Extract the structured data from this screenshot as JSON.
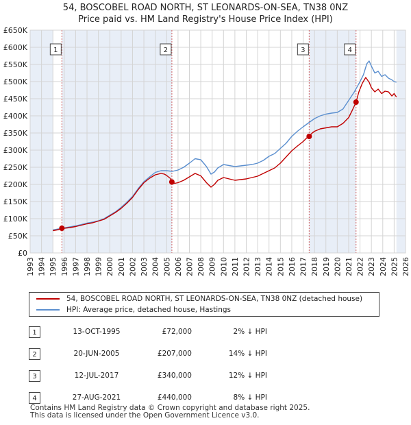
{
  "title_line1": "54, BOSCOBEL ROAD NORTH, ST LEONARDS-ON-SEA, TN38 0NZ",
  "title_line2": "Price paid vs. HM Land Registry's House Price Index (HPI)",
  "chart_data": {
    "type": "line",
    "x_ticks": [
      "1993",
      "1994",
      "1995",
      "1996",
      "1997",
      "1998",
      "1999",
      "2000",
      "2001",
      "2002",
      "2003",
      "2004",
      "2005",
      "2006",
      "2007",
      "2008",
      "2009",
      "2010",
      "2011",
      "2012",
      "2013",
      "2014",
      "2015",
      "2016",
      "2017",
      "2018",
      "2019",
      "2020",
      "2021",
      "2022",
      "2023",
      "2024",
      "2025",
      "2026"
    ],
    "y_ticks": [
      "£0",
      "£50K",
      "£100K",
      "£150K",
      "£200K",
      "£250K",
      "£300K",
      "£350K",
      "£400K",
      "£450K",
      "£500K",
      "£550K",
      "£600K",
      "£650K"
    ],
    "xlim": [
      1993,
      2026
    ],
    "ylim": [
      0,
      650000
    ],
    "grid": true,
    "colors": {
      "property": "#c00000",
      "hpi": "#5b8fcf",
      "shade": "#e8eef7",
      "marker": "#c00000"
    },
    "series": [
      {
        "name": "54, BOSCOBEL ROAD NORTH, ST LEONARDS-ON-SEA, TN38 0NZ (detached house)",
        "x": [
          1995.0,
          1995.5,
          1995.79,
          1996.0,
          1996.5,
          1997.0,
          1997.5,
          1998.0,
          1998.5,
          1999.0,
          1999.5,
          2000.0,
          2000.5,
          2001.0,
          2001.5,
          2002.0,
          2002.5,
          2003.0,
          2003.5,
          2004.0,
          2004.5,
          2004.8,
          2005.0,
          2005.3,
          2005.46,
          2005.7,
          2006.0,
          2006.5,
          2007.0,
          2007.5,
          2008.0,
          2008.5,
          2008.9,
          2009.2,
          2009.5,
          2010.0,
          2010.5,
          2011.0,
          2011.5,
          2012.0,
          2012.5,
          2013.0,
          2013.5,
          2014.0,
          2014.5,
          2015.0,
          2015.5,
          2016.0,
          2016.5,
          2017.0,
          2017.3,
          2017.53,
          2017.8,
          2018.0,
          2018.5,
          2019.0,
          2019.5,
          2020.0,
          2020.5,
          2021.0,
          2021.3,
          2021.65,
          2021.9,
          2022.2,
          2022.5,
          2022.8,
          2023.0,
          2023.3,
          2023.6,
          2023.9,
          2024.2,
          2024.5,
          2024.8,
          2025.0,
          2025.2
        ],
        "values": [
          65000,
          68000,
          72000,
          72000,
          74000,
          77000,
          81000,
          85000,
          88000,
          93000,
          98000,
          108000,
          118000,
          130000,
          145000,
          162000,
          185000,
          205000,
          218000,
          228000,
          232000,
          230000,
          226000,
          218000,
          207000,
          203000,
          205000,
          212000,
          222000,
          232000,
          225000,
          205000,
          192000,
          200000,
          212000,
          220000,
          216000,
          212000,
          214000,
          216000,
          220000,
          224000,
          232000,
          240000,
          248000,
          262000,
          280000,
          298000,
          312000,
          325000,
          335000,
          340000,
          350000,
          355000,
          362000,
          365000,
          368000,
          368000,
          378000,
          395000,
          415000,
          440000,
          470000,
          495000,
          512000,
          498000,
          482000,
          470000,
          478000,
          465000,
          472000,
          470000,
          458000,
          465000,
          455000
        ]
      },
      {
        "name": "HPI: Average price, detached house, Hastings",
        "x": [
          1995.0,
          1995.5,
          1996.0,
          1996.5,
          1997.0,
          1997.5,
          1998.0,
          1998.5,
          1999.0,
          1999.5,
          2000.0,
          2000.5,
          2001.0,
          2001.5,
          2002.0,
          2002.5,
          2003.0,
          2003.5,
          2004.0,
          2004.5,
          2005.0,
          2005.5,
          2006.0,
          2006.5,
          2007.0,
          2007.5,
          2008.0,
          2008.5,
          2008.9,
          2009.2,
          2009.5,
          2010.0,
          2010.5,
          2011.0,
          2011.5,
          2012.0,
          2012.5,
          2013.0,
          2013.5,
          2014.0,
          2014.5,
          2015.0,
          2015.5,
          2016.0,
          2016.5,
          2017.0,
          2017.5,
          2018.0,
          2018.5,
          2019.0,
          2019.5,
          2020.0,
          2020.5,
          2021.0,
          2021.5,
          2022.0,
          2022.3,
          2022.6,
          2022.8,
          2023.0,
          2023.3,
          2023.6,
          2023.9,
          2024.2,
          2024.5,
          2024.8,
          2025.0,
          2025.2
        ],
        "values": [
          67000,
          70000,
          73000,
          76000,
          79000,
          83000,
          87000,
          90000,
          94000,
          100000,
          110000,
          120000,
          133000,
          148000,
          165000,
          188000,
          208000,
          222000,
          235000,
          240000,
          240000,
          238000,
          242000,
          250000,
          262000,
          275000,
          272000,
          252000,
          230000,
          236000,
          248000,
          258000,
          255000,
          252000,
          254000,
          256000,
          258000,
          262000,
          270000,
          282000,
          290000,
          305000,
          320000,
          340000,
          355000,
          368000,
          380000,
          392000,
          400000,
          405000,
          408000,
          410000,
          420000,
          445000,
          470000,
          500000,
          520000,
          552000,
          560000,
          545000,
          525000,
          530000,
          515000,
          520000,
          510000,
          505000,
          500000,
          498000
        ]
      }
    ],
    "sales": [
      {
        "num": "1",
        "x": 1995.79,
        "value": 72000
      },
      {
        "num": "2",
        "x": 2005.46,
        "value": 207000
      },
      {
        "num": "3",
        "x": 2017.53,
        "value": 340000
      },
      {
        "num": "4",
        "x": 2021.65,
        "value": 440000
      }
    ],
    "shaded_ranges": [
      [
        1993,
        1995.0
      ],
      [
        1995.79,
        2005.46
      ],
      [
        2017.53,
        2021.65
      ],
      [
        2025.2,
        2026
      ]
    ]
  },
  "legend": {
    "property_label": "54, BOSCOBEL ROAD NORTH, ST LEONARDS-ON-SEA, TN38 0NZ (detached house)",
    "hpi_label": "HPI: Average price, detached house, Hastings"
  },
  "sales_table": [
    {
      "num": "1",
      "date": "13-OCT-1995",
      "price": "£72,000",
      "hpi": "2% ↓ HPI"
    },
    {
      "num": "2",
      "date": "20-JUN-2005",
      "price": "£207,000",
      "hpi": "14% ↓ HPI"
    },
    {
      "num": "3",
      "date": "12-JUL-2017",
      "price": "£340,000",
      "hpi": "12% ↓ HPI"
    },
    {
      "num": "4",
      "date": "27-AUG-2021",
      "price": "£440,000",
      "hpi": "8% ↓ HPI"
    }
  ],
  "footer": {
    "line1": "Contains HM Land Registry data © Crown copyright and database right 2025.",
    "line2": "This data is licensed under the Open Government Licence v3.0."
  }
}
